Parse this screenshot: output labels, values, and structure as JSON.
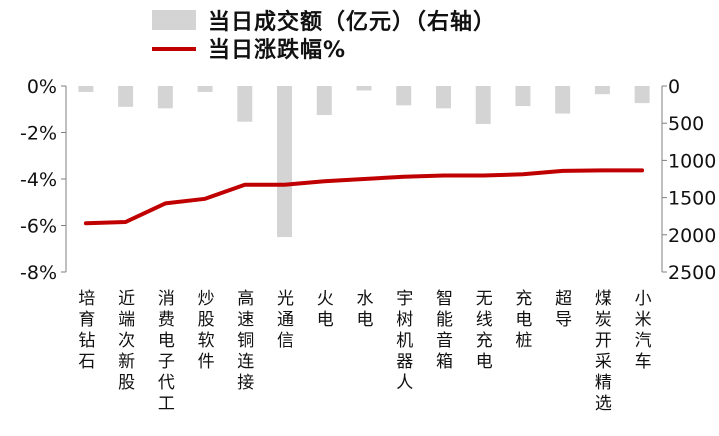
{
  "chart_data": {
    "type": "bar+line",
    "categories": [
      "培育钻石",
      "近端次新股",
      "消费电子代工",
      "炒股软件",
      "高速铜连接",
      "光通信",
      "火电",
      "水电",
      "宇树机器人",
      "智能音箱",
      "无线充电",
      "充电桩",
      "超导",
      "煤炭开采精选",
      "小米汽车"
    ],
    "series": [
      {
        "name": "当日成交额（亿元）（右轴）",
        "type": "bar",
        "axis": "right",
        "color": "#d4d4d4",
        "values": [
          80,
          280,
          300,
          80,
          480,
          2030,
          390,
          60,
          260,
          300,
          510,
          270,
          370,
          110,
          230
        ]
      },
      {
        "name": "当日涨跌幅%",
        "type": "line",
        "axis": "left",
        "color": "#c00000",
        "values": [
          -5.9,
          -5.85,
          -5.05,
          -4.85,
          -4.25,
          -4.25,
          -4.1,
          -4.0,
          -3.9,
          -3.85,
          -3.85,
          -3.8,
          -3.65,
          -3.63,
          -3.63
        ]
      }
    ],
    "left_axis": {
      "ylim": [
        -8,
        0
      ],
      "ticks": [
        0,
        -2,
        -4,
        -6,
        -8
      ],
      "tick_labels": [
        "0%",
        "-2%",
        "-4%",
        "-6%",
        "-8%"
      ]
    },
    "right_axis": {
      "ylim": [
        2500,
        0
      ],
      "inverted": true,
      "ticks": [
        0,
        500,
        1000,
        1500,
        2000,
        2500
      ],
      "tick_labels": [
        "0",
        "500",
        "1000",
        "1500",
        "2000",
        "2500"
      ]
    },
    "legend": {
      "placement": "top-center",
      "items": [
        "当日成交额（亿元）（右轴）",
        "当日涨跌幅%"
      ]
    },
    "grid": false
  }
}
